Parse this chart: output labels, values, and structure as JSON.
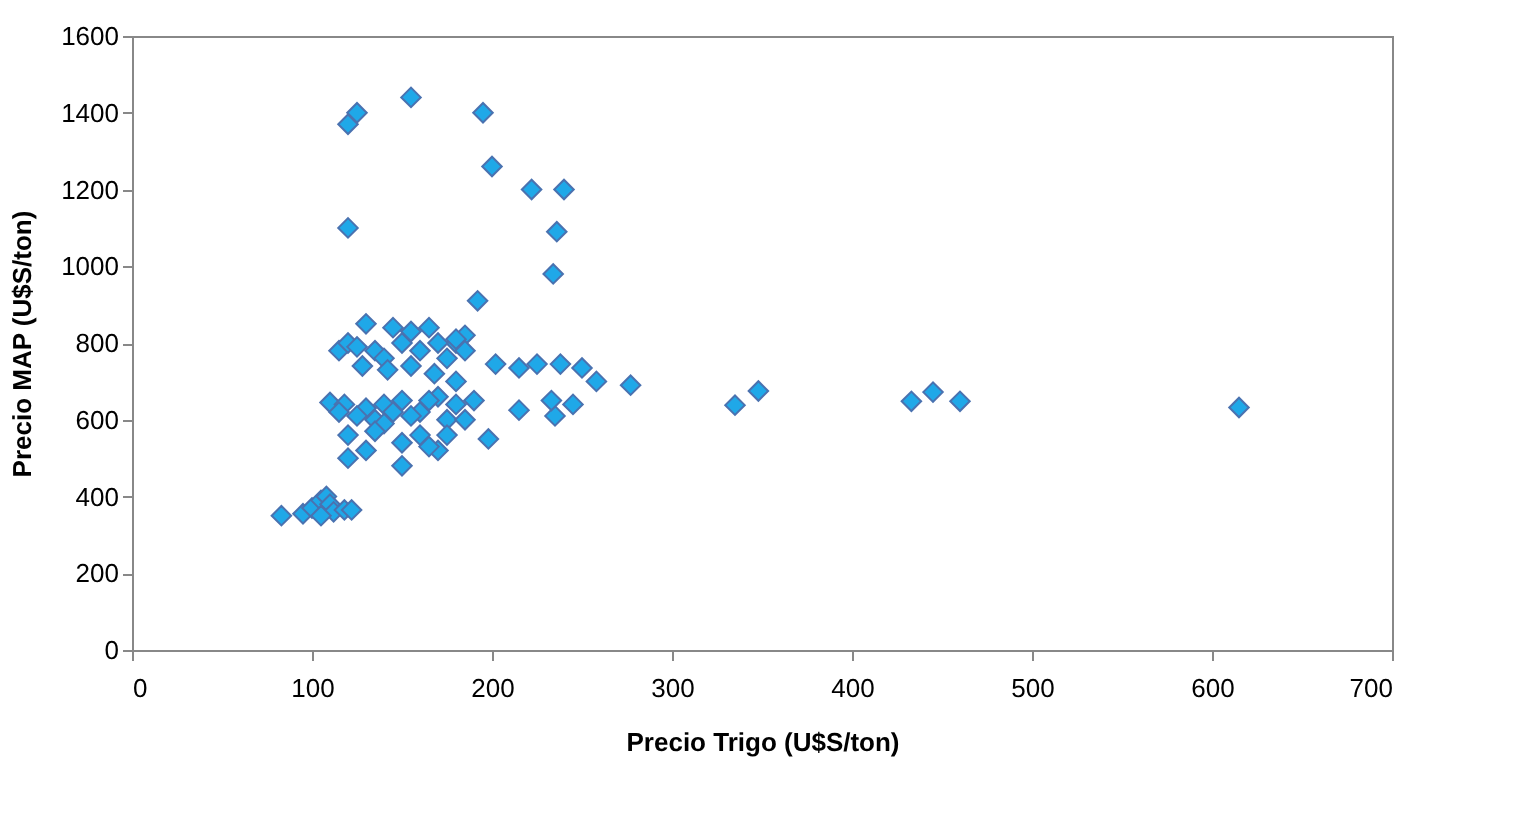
{
  "chart_data": {
    "type": "scatter",
    "xlabel": "Precio Trigo (U$S/ton)",
    "ylabel": "Precio MAP (U$S/ton)",
    "xlim": [
      0,
      700
    ],
    "xticks": [
      0,
      100,
      200,
      300,
      400,
      500,
      600,
      700
    ],
    "ylim": [
      0,
      1600
    ],
    "yticks": [
      0,
      200,
      400,
      600,
      800,
      1000,
      1200,
      1400,
      1600
    ],
    "grid": false,
    "marker": "diamond",
    "series": [
      {
        "color": "#1fa8e8",
        "x": [
          615,
          460,
          445,
          433,
          348,
          335,
          277,
          258,
          250,
          245,
          240,
          238,
          236,
          234,
          235,
          233,
          222,
          225,
          215,
          215,
          200,
          195,
          202,
          198,
          192,
          190,
          185,
          180,
          155,
          125,
          120,
          120,
          83,
          95,
          100,
          105,
          108,
          110,
          112,
          118,
          122,
          105,
          110,
          115,
          120,
          125,
          130,
          135,
          140,
          145,
          150,
          155,
          160,
          165,
          170,
          175,
          180,
          185,
          130,
          140,
          150,
          160,
          170,
          180,
          118,
          125,
          135,
          145,
          155,
          165,
          175,
          120,
          130,
          140,
          150,
          160,
          170,
          185,
          120,
          135,
          150,
          165,
          175,
          115,
          128,
          142,
          155,
          168,
          180
        ],
        "values": [
          632,
          648,
          672,
          648,
          675,
          638,
          690,
          700,
          735,
          640,
          1200,
          745,
          1090,
          980,
          610,
          650,
          1200,
          745,
          735,
          625,
          1260,
          1400,
          745,
          550,
          910,
          650,
          820,
          800,
          1440,
          1400,
          1370,
          1100,
          350,
          355,
          370,
          390,
          400,
          380,
          360,
          365,
          365,
          350,
          645,
          780,
          800,
          790,
          850,
          780,
          760,
          840,
          800,
          830,
          780,
          840,
          800,
          760,
          810,
          780,
          630,
          640,
          650,
          620,
          660,
          640,
          640,
          610,
          600,
          620,
          610,
          650,
          600,
          560,
          520,
          590,
          540,
          560,
          520,
          600,
          500,
          570,
          480,
          530,
          560,
          620,
          740,
          730,
          740,
          720,
          700
        ]
      }
    ]
  }
}
